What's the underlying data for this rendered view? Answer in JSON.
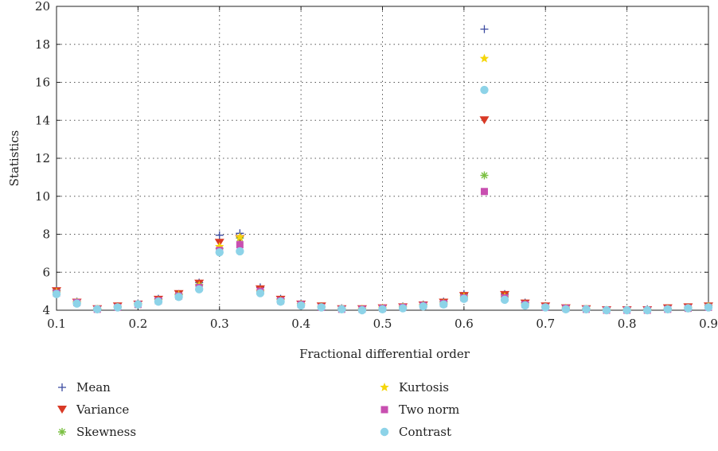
{
  "chart_data": {
    "type": "scatter",
    "title": "",
    "xlabel": "Fractional differential order",
    "ylabel": "Statistics",
    "xlim": [
      0.1,
      0.9
    ],
    "ylim": [
      4,
      20
    ],
    "xticks": [
      "0.1",
      "0.2",
      "0.3",
      "0.4",
      "0.5",
      "0.6",
      "0.7",
      "0.8",
      "0.9"
    ],
    "yticks": [
      "4",
      "6",
      "8",
      "10",
      "12",
      "14",
      "16",
      "18",
      "20"
    ],
    "grid": true,
    "legend_position": "bottom",
    "x": [
      0.1,
      0.125,
      0.15,
      0.175,
      0.2,
      0.225,
      0.25,
      0.275,
      0.3,
      0.325,
      0.35,
      0.375,
      0.4,
      0.425,
      0.45,
      0.475,
      0.5,
      0.525,
      0.55,
      0.575,
      0.6,
      0.625,
      0.65,
      0.675,
      0.7,
      0.725,
      0.75,
      0.775,
      0.8,
      0.825,
      0.85,
      0.875,
      0.9
    ],
    "series": [
      {
        "name": "Mean",
        "marker": "plus",
        "color": "#3b4aa0",
        "values": [
          5.05,
          4.45,
          4.05,
          4.2,
          4.35,
          4.6,
          4.85,
          5.45,
          7.95,
          8.05,
          5.2,
          4.6,
          4.35,
          4.2,
          4.1,
          4.05,
          4.1,
          4.2,
          4.3,
          4.45,
          4.85,
          18.8,
          4.85,
          4.4,
          4.2,
          4.1,
          4.05,
          4.0,
          4.0,
          4.05,
          4.1,
          4.15,
          4.25
        ]
      },
      {
        "name": "Variance",
        "marker": "triangle-down",
        "color": "#d93a26",
        "values": [
          5.0,
          4.4,
          4.05,
          4.2,
          4.3,
          4.55,
          4.85,
          5.4,
          7.55,
          7.75,
          5.1,
          4.55,
          4.3,
          4.2,
          4.05,
          4.05,
          4.1,
          4.15,
          4.25,
          4.4,
          4.75,
          14.0,
          4.8,
          4.35,
          4.2,
          4.1,
          4.05,
          4.0,
          4.0,
          4.0,
          4.1,
          4.15,
          4.2
        ]
      },
      {
        "name": "Skewness",
        "marker": "asterisk",
        "color": "#7bc043",
        "values": [
          4.95,
          4.4,
          4.05,
          4.15,
          4.3,
          4.5,
          4.8,
          5.3,
          7.25,
          7.8,
          5.0,
          4.5,
          4.3,
          4.15,
          4.05,
          4.05,
          4.1,
          4.15,
          4.25,
          4.35,
          4.7,
          11.1,
          4.7,
          4.3,
          4.15,
          4.1,
          4.05,
          4.0,
          4.0,
          4.0,
          4.05,
          4.1,
          4.2
        ]
      },
      {
        "name": "Kurtosis",
        "marker": "star",
        "color": "#f5d60a",
        "values": [
          4.95,
          4.4,
          4.05,
          4.15,
          4.3,
          4.5,
          4.8,
          5.3,
          7.35,
          7.85,
          5.0,
          4.5,
          4.3,
          4.15,
          4.05,
          4.05,
          4.1,
          4.15,
          4.25,
          4.35,
          4.7,
          17.25,
          4.7,
          4.3,
          4.15,
          4.1,
          4.05,
          4.0,
          4.0,
          4.0,
          4.05,
          4.1,
          4.2
        ]
      },
      {
        "name": "Two norm",
        "marker": "square",
        "color": "#c84fb0",
        "values": [
          4.9,
          4.4,
          4.05,
          4.15,
          4.3,
          4.5,
          4.75,
          5.2,
          7.15,
          7.45,
          5.0,
          4.5,
          4.3,
          4.15,
          4.05,
          4.05,
          4.1,
          4.15,
          4.25,
          4.35,
          4.65,
          10.25,
          4.65,
          4.3,
          4.15,
          4.1,
          4.05,
          4.0,
          4.0,
          4.0,
          4.05,
          4.1,
          4.15
        ]
      },
      {
        "name": "Contrast",
        "marker": "circle",
        "color": "#8dd3e8",
        "values": [
          4.85,
          4.35,
          4.05,
          4.15,
          4.3,
          4.45,
          4.7,
          5.1,
          7.05,
          7.1,
          4.9,
          4.45,
          4.25,
          4.15,
          4.05,
          4.0,
          4.05,
          4.1,
          4.2,
          4.3,
          4.6,
          15.6,
          4.55,
          4.25,
          4.15,
          4.05,
          4.05,
          4.0,
          4.0,
          4.0,
          4.05,
          4.1,
          4.15
        ]
      }
    ]
  }
}
